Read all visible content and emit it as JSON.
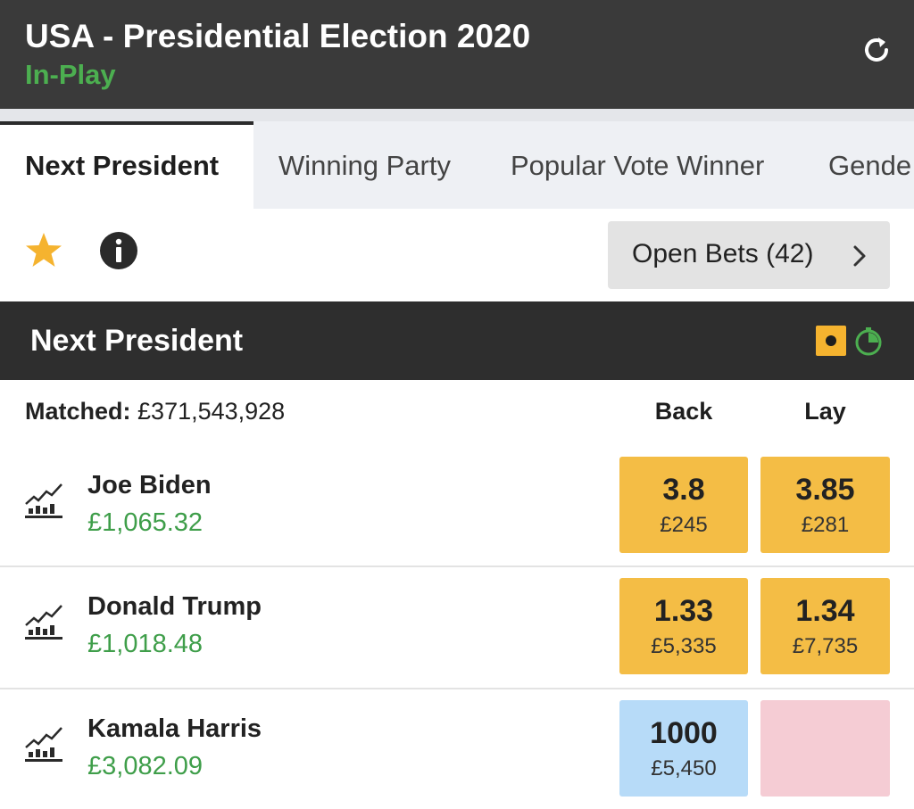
{
  "header": {
    "title": "USA - Presidential Election 2020",
    "status": "In-Play"
  },
  "tabs": [
    {
      "label": "Next President"
    },
    {
      "label": "Winning Party"
    },
    {
      "label": "Popular Vote Winner"
    },
    {
      "label": "Gende"
    }
  ],
  "open_bets_label": "Open Bets (42)",
  "market": {
    "name": "Next President",
    "matched_label": "Matched:",
    "matched_value": "£371,543,928",
    "back_label": "Back",
    "lay_label": "Lay"
  },
  "runners": [
    {
      "name": "Joe Biden",
      "pl": "£1,065.32",
      "back_odds": "3.8",
      "back_stake": "£245",
      "lay_odds": "3.85",
      "lay_stake": "£281"
    },
    {
      "name": "Donald Trump",
      "pl": "£1,018.48",
      "back_odds": "1.33",
      "back_stake": "£5,335",
      "lay_odds": "1.34",
      "lay_stake": "£7,735"
    },
    {
      "name": "Kamala Harris",
      "pl": "£3,082.09",
      "back_odds": "1000",
      "back_stake": "£5,450",
      "lay_odds": "",
      "lay_stake": ""
    }
  ],
  "colors": {
    "header_bg": "#3a3a3a",
    "in_play_green": "#4caf50",
    "price_gold": "#f4bd45",
    "back_blue": "#b7dbf8",
    "lay_pink": "#f5ccd4",
    "profit_green": "#3f9e4a",
    "star_yellow": "#f5b32f"
  },
  "icons": [
    "refresh-icon",
    "star-icon",
    "info-icon",
    "chevron-right-icon",
    "cashout-icon",
    "timer-icon",
    "chart-icon"
  ]
}
